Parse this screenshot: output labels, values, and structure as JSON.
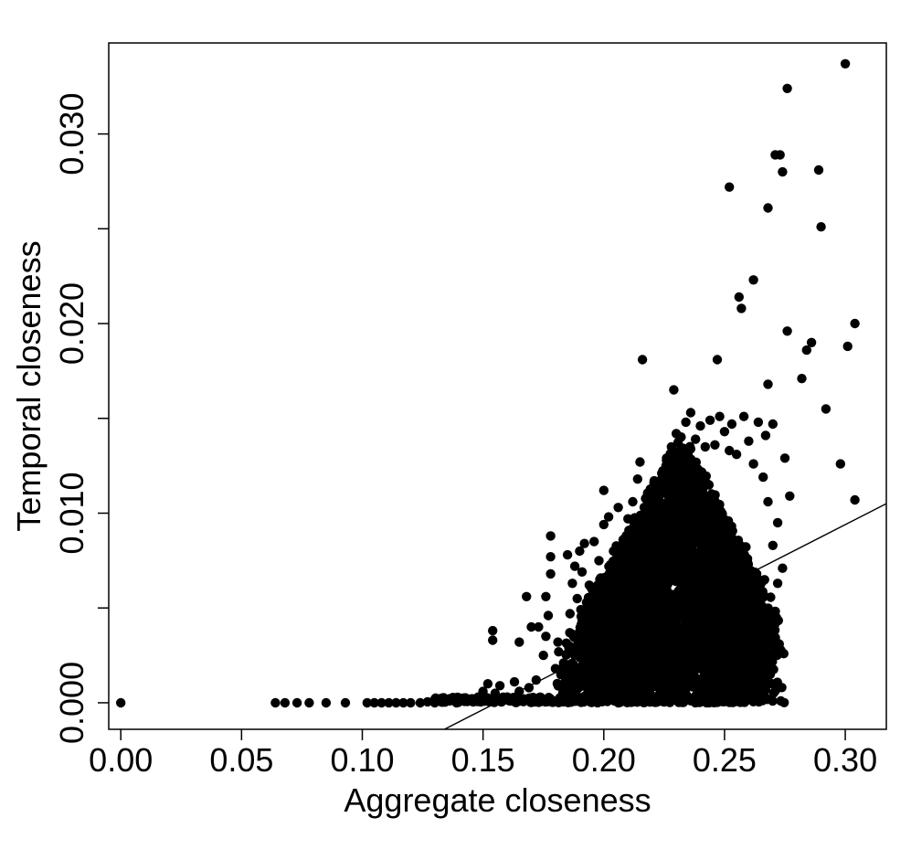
{
  "chart_data": {
    "type": "scatter",
    "title": "",
    "xlabel": "Aggregate closeness",
    "ylabel": "Temporal closeness",
    "xlim": [
      -0.005,
      0.317
    ],
    "ylim": [
      -0.0014,
      0.0348
    ],
    "x_ticks": [
      0.0,
      0.05,
      0.1,
      0.15,
      0.2,
      0.25,
      0.3
    ],
    "x_tick_labels": [
      "0.00",
      "0.05",
      "0.10",
      "0.15",
      "0.20",
      "0.25",
      "0.30"
    ],
    "y_ticks": [
      0.0,
      0.005,
      0.01,
      0.015,
      0.02,
      0.025,
      0.03
    ],
    "y_tick_labels": [
      "0.000",
      "",
      "0.010",
      "",
      "0.020",
      "",
      "0.030"
    ],
    "grid": false,
    "legend": "none",
    "point_color": "#000000",
    "fit_line": {
      "x": [
        0.134,
        0.317
      ],
      "y": [
        -0.0014,
        0.0105
      ]
    },
    "series": [
      {
        "points": [
          [
            0.0,
            0.0
          ],
          [
            0.064,
            0.0
          ],
          [
            0.068,
            0.0
          ],
          [
            0.073,
            0.0
          ],
          [
            0.078,
            0.0
          ],
          [
            0.085,
            0.0
          ],
          [
            0.093,
            0.0
          ],
          [
            0.102,
            0.0
          ],
          [
            0.105,
            0.0
          ],
          [
            0.108,
            0.0
          ],
          [
            0.111,
            0.0
          ],
          [
            0.114,
            0.0
          ],
          [
            0.117,
            0.0
          ],
          [
            0.12,
            0.0
          ],
          [
            0.124,
            0.0
          ],
          [
            0.127,
            5e-05
          ],
          [
            0.13,
            0.0
          ],
          [
            0.133,
            5e-05
          ],
          [
            0.136,
            0.0001
          ],
          [
            0.139,
            0.0
          ],
          [
            0.142,
            0.0001
          ],
          [
            0.145,
            0.0002
          ],
          [
            0.148,
            0.0003
          ],
          [
            0.15,
            0.0006
          ],
          [
            0.152,
            0.001
          ],
          [
            0.155,
            0.0005
          ],
          [
            0.157,
            0.0009
          ],
          [
            0.16,
            0.0003
          ],
          [
            0.163,
            0.0011
          ],
          [
            0.165,
            0.0006
          ],
          [
            0.167,
            0.0002
          ],
          [
            0.169,
            0.0008
          ],
          [
            0.17,
            0.0001
          ],
          [
            0.172,
            0.0012
          ],
          [
            0.154,
            0.0038
          ],
          [
            0.154,
            0.0033
          ],
          [
            0.165,
            0.0032
          ],
          [
            0.168,
            0.0056
          ],
          [
            0.17,
            0.004
          ],
          [
            0.173,
            0.004
          ],
          [
            0.175,
            0.0025
          ],
          [
            0.176,
            0.0056
          ],
          [
            0.177,
            0.0046
          ],
          [
            0.178,
            0.0088
          ],
          [
            0.178,
            0.0077
          ],
          [
            0.178,
            0.0068
          ],
          [
            0.176,
            0.0035
          ],
          [
            0.18,
            0.0018
          ],
          [
            0.181,
            0.0032
          ],
          [
            0.183,
            0.0005
          ],
          [
            0.186,
            0.0012
          ],
          [
            0.185,
            0.0078
          ],
          [
            0.187,
            0.0063
          ],
          [
            0.188,
            0.0072
          ],
          [
            0.19,
            0.008
          ],
          [
            0.192,
            0.0084
          ],
          [
            0.186,
            0.0047
          ],
          [
            0.189,
            0.0055
          ],
          [
            0.191,
            0.0069
          ],
          [
            0.194,
            0.0062
          ],
          [
            0.196,
            0.0085
          ],
          [
            0.198,
            0.0075
          ],
          [
            0.2,
            0.0112
          ],
          [
            0.2,
            0.0094
          ],
          [
            0.202,
            0.0098
          ],
          [
            0.204,
            0.008
          ],
          [
            0.206,
            0.0103
          ],
          [
            0.208,
            0.0086
          ],
          [
            0.21,
            0.0097
          ],
          [
            0.212,
            0.0106
          ],
          [
            0.214,
            0.0118
          ],
          [
            0.215,
            0.0127
          ],
          [
            0.216,
            0.0181
          ],
          [
            0.218,
            0.0109
          ],
          [
            0.22,
            0.0113
          ],
          [
            0.222,
            0.01
          ],
          [
            0.224,
            0.0121
          ],
          [
            0.226,
            0.0129
          ],
          [
            0.228,
            0.0135
          ],
          [
            0.229,
            0.0165
          ],
          [
            0.23,
            0.0142
          ],
          [
            0.232,
            0.0131
          ],
          [
            0.234,
            0.0148
          ],
          [
            0.236,
            0.0153
          ],
          [
            0.238,
            0.0139
          ],
          [
            0.24,
            0.0146
          ],
          [
            0.242,
            0.0135
          ],
          [
            0.244,
            0.0149
          ],
          [
            0.246,
            0.0136
          ],
          [
            0.247,
            0.0181
          ],
          [
            0.248,
            0.0151
          ],
          [
            0.25,
            0.0143
          ],
          [
            0.252,
            0.0133
          ],
          [
            0.253,
            0.0147
          ],
          [
            0.255,
            0.0131
          ],
          [
            0.256,
            0.0214
          ],
          [
            0.257,
            0.0208
          ],
          [
            0.258,
            0.0151
          ],
          [
            0.26,
            0.0138
          ],
          [
            0.262,
            0.0223
          ],
          [
            0.262,
            0.0126
          ],
          [
            0.264,
            0.0148
          ],
          [
            0.266,
            0.0119
          ],
          [
            0.267,
            0.0141
          ],
          [
            0.268,
            0.0168
          ],
          [
            0.268,
            0.0261
          ],
          [
            0.27,
            0.0147
          ],
          [
            0.271,
            0.0289
          ],
          [
            0.273,
            0.0289
          ],
          [
            0.274,
            0.028
          ],
          [
            0.275,
            0.0129
          ],
          [
            0.276,
            0.0324
          ],
          [
            0.276,
            0.0196
          ],
          [
            0.277,
            0.0109
          ],
          [
            0.282,
            0.0171
          ],
          [
            0.284,
            0.0186
          ],
          [
            0.286,
            0.019
          ],
          [
            0.289,
            0.0281
          ],
          [
            0.29,
            0.0251
          ],
          [
            0.292,
            0.0155
          ],
          [
            0.3,
            0.0337
          ],
          [
            0.301,
            0.0188
          ],
          [
            0.304,
            0.02
          ],
          [
            0.304,
            0.0107
          ],
          [
            0.298,
            0.0126
          ],
          [
            0.252,
            0.0272
          ],
          [
            0.268,
            0.0106
          ],
          [
            0.272,
            0.0095
          ],
          [
            0.27,
            0.0083
          ],
          [
            0.274,
            0.0071
          ],
          [
            0.272,
            0.0063
          ],
          [
            0.268,
            0.0047
          ],
          [
            0.27,
            0.0035
          ],
          [
            0.266,
            0.0022
          ],
          [
            0.262,
            0.0015
          ],
          [
            0.256,
            0.0006
          ],
          [
            0.253,
            0.0004
          ],
          [
            0.198,
            0.0015
          ],
          [
            0.196,
            0.0025
          ],
          [
            0.193,
            0.0038
          ],
          [
            0.199,
            0.0048
          ],
          [
            0.203,
            0.0058
          ]
        ]
      }
    ],
    "dense_cloud": {
      "x_range": [
        0.18,
        0.275
      ],
      "y_range": [
        0.0,
        0.0145
      ]
    }
  }
}
